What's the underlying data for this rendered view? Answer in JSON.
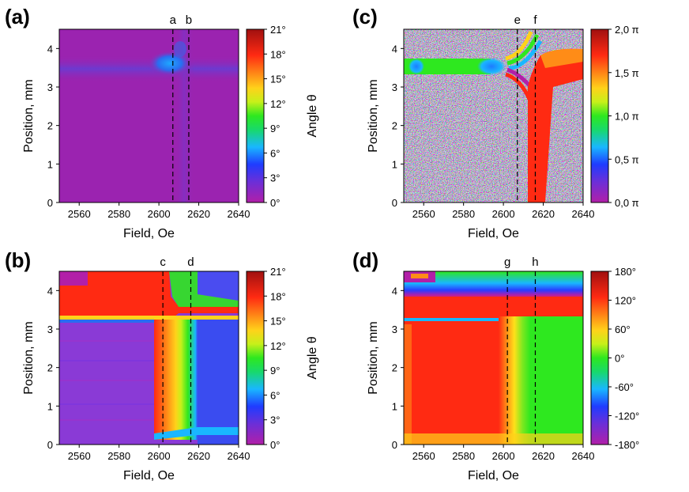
{
  "chart_data": [
    {
      "panel": "(a)",
      "type": "heatmap",
      "xlabel": "Field, Oe",
      "ylabel": "Position, mm",
      "xlim": [
        2550,
        2640
      ],
      "ylim": [
        0,
        4.5
      ],
      "xticks": [
        "2560",
        "2580",
        "2600",
        "2620",
        "2640"
      ],
      "yticks": [
        "0",
        "1",
        "2",
        "3",
        "4"
      ],
      "xtick_values": [
        2560,
        2580,
        2600,
        2620,
        2640
      ],
      "ytick_values": [
        0,
        1,
        2,
        3,
        4
      ],
      "markers": [
        {
          "label": "a",
          "x": 2607
        },
        {
          "label": "b",
          "x": 2615
        }
      ],
      "colorbar": {
        "label": "Angle θ",
        "min": 0,
        "max": 21,
        "ticks": [
          "0°",
          "3°",
          "6°",
          "9°",
          "12°",
          "15°",
          "18°",
          "21°"
        ],
        "tick_values": [
          0,
          3,
          6,
          9,
          12,
          15,
          18,
          21
        ],
        "scheme": "spectral"
      },
      "background_color": "#9b23b0"
    },
    {
      "panel": "(b)",
      "type": "heatmap",
      "xlabel": "Field, Oe",
      "ylabel": "Position, mm",
      "xlim": [
        2550,
        2640
      ],
      "ylim": [
        0,
        4.5
      ],
      "xticks": [
        "2560",
        "2580",
        "2600",
        "2620",
        "2640"
      ],
      "yticks": [
        "0",
        "1",
        "2",
        "3",
        "4"
      ],
      "xtick_values": [
        2560,
        2580,
        2600,
        2620,
        2640
      ],
      "ytick_values": [
        0,
        1,
        2,
        3,
        4
      ],
      "markers": [
        {
          "label": "c",
          "x": 2602
        },
        {
          "label": "d",
          "x": 2616
        }
      ],
      "colorbar": {
        "label": "Angle θ",
        "min": 0,
        "max": 21,
        "ticks": [
          "0°",
          "3°",
          "6°",
          "9°",
          "12°",
          "15°",
          "18°",
          "21°"
        ],
        "tick_values": [
          0,
          3,
          6,
          9,
          12,
          15,
          18,
          21
        ],
        "scheme": "spectral"
      },
      "background_color": "#8a3ad6"
    },
    {
      "panel": "(c)",
      "type": "heatmap",
      "xlabel": "Field, Oe",
      "ylabel": "Position, mm",
      "xlim": [
        2550,
        2640
      ],
      "ylim": [
        0,
        4.5
      ],
      "xticks": [
        "2560",
        "2580",
        "2600",
        "2620",
        "2640"
      ],
      "yticks": [
        "0",
        "1",
        "2",
        "3",
        "4"
      ],
      "xtick_values": [
        2560,
        2580,
        2600,
        2620,
        2640
      ],
      "ytick_values": [
        0,
        1,
        2,
        3,
        4
      ],
      "markers": [
        {
          "label": "e",
          "x": 2607
        },
        {
          "label": "f",
          "x": 2616
        }
      ],
      "colorbar": {
        "label": "",
        "min": 0,
        "max": 2,
        "ticks": [
          "0,0 π",
          "0,5 π",
          "1,0 π",
          "1,5 π",
          "2,0 π"
        ],
        "tick_values": [
          0,
          0.5,
          1.0,
          1.5,
          2.0
        ],
        "scheme": "spectral"
      },
      "background_color": "noise"
    },
    {
      "panel": "(d)",
      "type": "heatmap",
      "xlabel": "Field, Oe",
      "ylabel": "Position, mm",
      "xlim": [
        2550,
        2640
      ],
      "ylim": [
        0,
        4.5
      ],
      "xticks": [
        "2560",
        "2580",
        "2600",
        "2620",
        "2640"
      ],
      "yticks": [
        "0",
        "1",
        "2",
        "3",
        "4"
      ],
      "xtick_values": [
        2560,
        2580,
        2600,
        2620,
        2640
      ],
      "ytick_values": [
        0,
        1,
        2,
        3,
        4
      ],
      "markers": [
        {
          "label": "g",
          "x": 2602
        },
        {
          "label": "h",
          "x": 2616
        }
      ],
      "colorbar": {
        "label": "",
        "min": -180,
        "max": 180,
        "ticks": [
          "-180°",
          "-120°",
          "-60°",
          "0°",
          "60°",
          "120°",
          "180°"
        ],
        "tick_values": [
          -180,
          -120,
          -60,
          0,
          60,
          120,
          180
        ],
        "scheme": "spectral"
      },
      "background_color": "#ff1a1a"
    }
  ]
}
